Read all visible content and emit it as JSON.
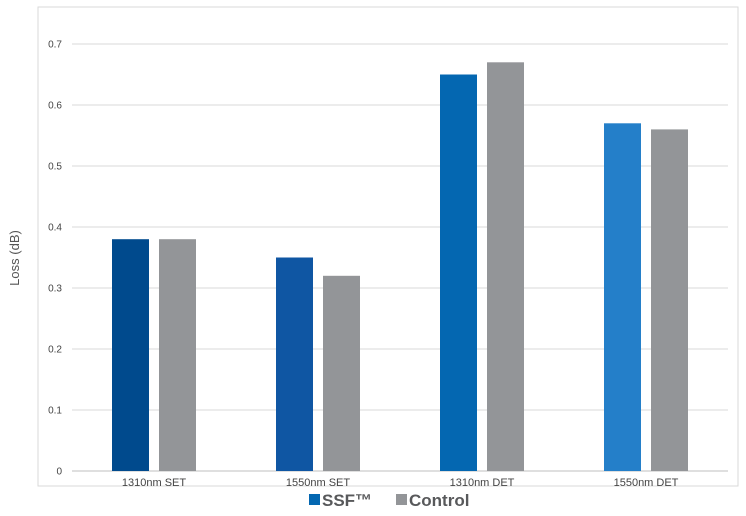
{
  "chart_data": {
    "type": "bar",
    "title": "",
    "xlabel": "",
    "ylabel": "Loss (dB)",
    "ylim": [
      0,
      0.7
    ],
    "yticks": [
      "0",
      "0.1",
      "0.2",
      "0.3",
      "0.4",
      "0.5",
      "0.6",
      "0.7"
    ],
    "grid": true,
    "legend_position": "bottom",
    "categories": [
      "1310nm SET",
      "1550nm SET",
      "1310nm DET",
      "1550nm DET"
    ],
    "series": [
      {
        "name": "SSF™",
        "values": [
          0.38,
          0.35,
          0.65,
          0.57
        ],
        "colors": [
          "#004a8d",
          "#0f56a3",
          "#0467b1",
          "#247fc9"
        ]
      },
      {
        "name": "Control",
        "values": [
          0.38,
          0.32,
          0.67,
          0.56
        ],
        "colors": [
          "#939598",
          "#939598",
          "#939598",
          "#939598"
        ]
      }
    ],
    "legend_colors": [
      "#0467b1",
      "#939598"
    ]
  }
}
